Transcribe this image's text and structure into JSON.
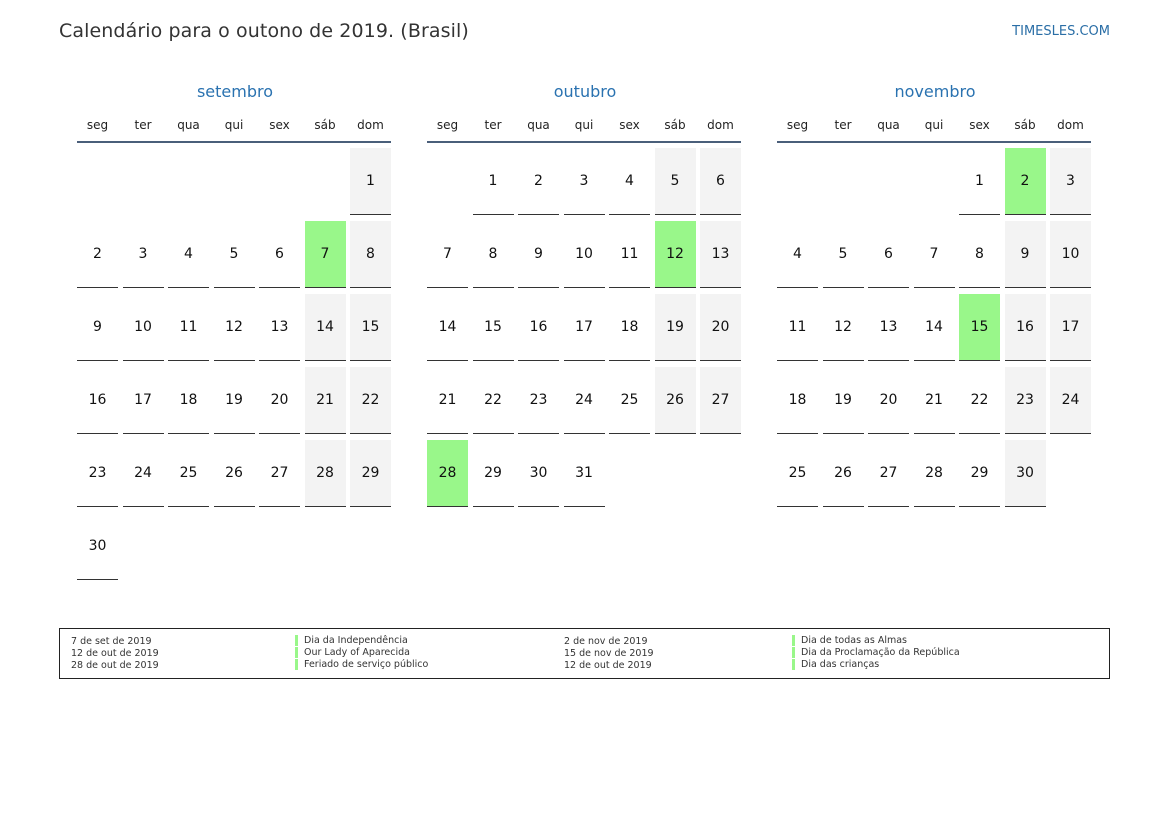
{
  "header": {
    "title": "Calendário para o outono de 2019. (Brasil)",
    "brand": "TIMESLES.COM"
  },
  "colors": {
    "holiday": "#99f78a",
    "weekend": "#f3f3f3",
    "month_title": "#2a72b0"
  },
  "weekdays": [
    "seg",
    "ter",
    "qua",
    "qui",
    "sex",
    "sáb",
    "dom"
  ],
  "months": [
    {
      "name": "setembro",
      "offset": 6,
      "days": 30,
      "holidays": [
        7
      ]
    },
    {
      "name": "outubro",
      "offset": 1,
      "days": 31,
      "holidays": [
        12,
        28
      ]
    },
    {
      "name": "novembro",
      "offset": 4,
      "days": 30,
      "holidays": [
        2,
        15
      ]
    }
  ],
  "legend": {
    "left": [
      {
        "date": "7 de set de 2019",
        "name": "Dia da Independência"
      },
      {
        "date": "12 de out de 2019",
        "name": "Our Lady of Aparecida"
      },
      {
        "date": "28 de out de 2019",
        "name": "Feriado de serviço público"
      }
    ],
    "right": [
      {
        "date": "2 de nov de 2019",
        "name": "Dia de todas as Almas"
      },
      {
        "date": "15 de nov de 2019",
        "name": "Dia da Proclamação da República"
      },
      {
        "date": "12 de out de 2019",
        "name": "Dia das crianças"
      }
    ]
  }
}
